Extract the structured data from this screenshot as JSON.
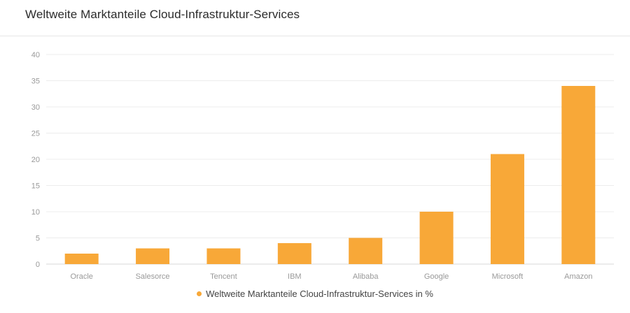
{
  "header": {
    "title": "Weltweite Marktanteile Cloud-Infrastruktur-Services"
  },
  "colors": {
    "bar": "#f8a838",
    "grid": "#ececec",
    "tick_text": "#999999"
  },
  "chart_data": {
    "type": "bar",
    "title": "Weltweite Marktanteile Cloud-Infrastruktur-Services",
    "categories": [
      "Oracle",
      "Salesorce",
      "Tencent",
      "IBM",
      "Alibaba",
      "Google",
      "Microsoft",
      "Amazon"
    ],
    "series": [
      {
        "name": "Weltweite Marktanteile Cloud-Infrastruktur-Services in %",
        "values": [
          2,
          3,
          3,
          4,
          5,
          10,
          21,
          34
        ]
      }
    ],
    "ylim": [
      0,
      40
    ],
    "yticks": [
      0,
      5,
      10,
      15,
      20,
      25,
      30,
      35,
      40
    ],
    "grid": true,
    "legend": "bottom-center"
  }
}
